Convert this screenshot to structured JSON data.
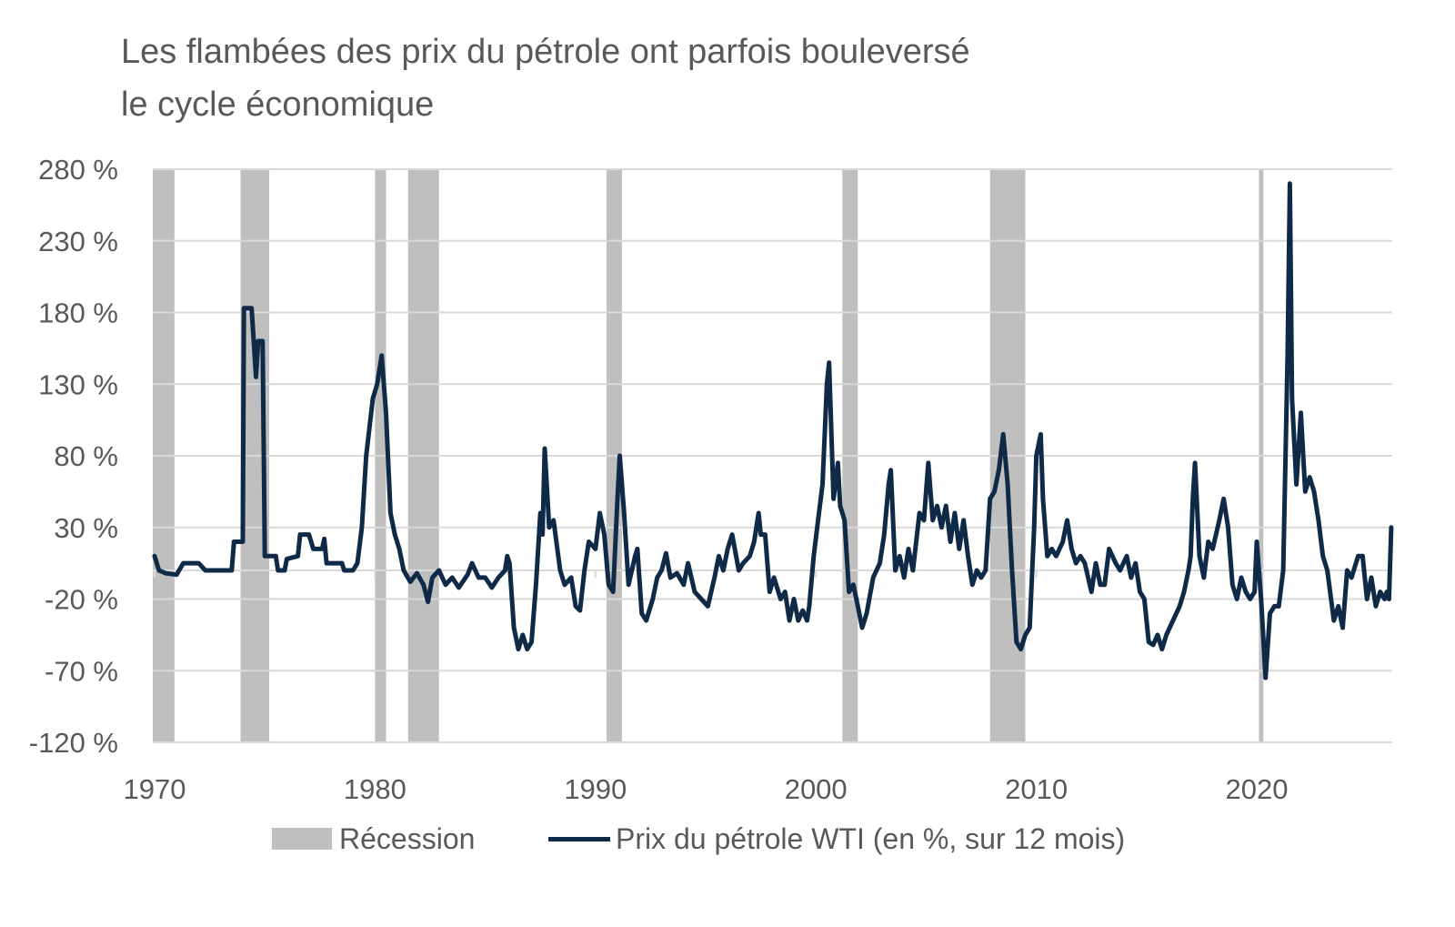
{
  "title_lines": [
    "Les flambées des prix du pétrole ont parfois bouleversé",
    "le cycle économique"
  ],
  "chart_data": {
    "type": "line",
    "title": "Les flambées des prix du pétrole ont parfois bouleversé le cycle économique",
    "xlabel": "",
    "ylabel": "",
    "xlim": [
      1970,
      2026.1
    ],
    "ylim": [
      -120,
      280
    ],
    "y_ticks": [
      280,
      230,
      180,
      130,
      80,
      30,
      -20,
      -70,
      -120
    ],
    "y_tick_labels": [
      "280 %",
      "230 %",
      "180 %",
      "130 %",
      "80 %",
      "30 %",
      "-20 %",
      "-70 %",
      "-120 %"
    ],
    "x_ticks": [
      1970,
      1980,
      1990,
      2000,
      2010,
      2020
    ],
    "x_tick_labels": [
      "1970",
      "1980",
      "1990",
      "2000",
      "2010",
      "2020"
    ],
    "grid": true,
    "legend_position": "bottom",
    "colors": {
      "line": "#0f2a47",
      "recession": "#bfbfbf",
      "grid": "#d9d9d9"
    },
    "recessions": [
      {
        "name": "Récession",
        "start": 1969.9,
        "end": 1970.9
      },
      {
        "name": "Récession",
        "start": 1973.9,
        "end": 1975.2
      },
      {
        "name": "Récession",
        "start": 1980.0,
        "end": 1980.5
      },
      {
        "name": "Récession",
        "start": 1981.5,
        "end": 1982.9
      },
      {
        "name": "Récession",
        "start": 1990.5,
        "end": 1991.2
      },
      {
        "name": "Récession",
        "start": 2001.2,
        "end": 2001.9
      },
      {
        "name": "Récession",
        "start": 2007.9,
        "end": 2009.5
      },
      {
        "name": "Récession",
        "start": 2020.1,
        "end": 2020.3
      }
    ],
    "series": [
      {
        "name": "Prix du pétrole WTI (en %, sur 12 mois)",
        "points": [
          [
            1970.0,
            10
          ],
          [
            1970.2,
            0
          ],
          [
            1970.5,
            -2
          ],
          [
            1971.0,
            -3
          ],
          [
            1971.3,
            5
          ],
          [
            1972.0,
            5
          ],
          [
            1972.3,
            0
          ],
          [
            1973.5,
            0
          ],
          [
            1973.6,
            20
          ],
          [
            1974.0,
            20
          ],
          [
            1974.05,
            183
          ],
          [
            1974.4,
            183
          ],
          [
            1974.6,
            135
          ],
          [
            1974.7,
            160
          ],
          [
            1974.9,
            160
          ],
          [
            1975.0,
            10
          ],
          [
            1975.5,
            10
          ],
          [
            1975.6,
            0
          ],
          [
            1975.9,
            0
          ],
          [
            1976.0,
            8
          ],
          [
            1976.5,
            10
          ],
          [
            1976.6,
            25
          ],
          [
            1977.0,
            25
          ],
          [
            1977.2,
            15
          ],
          [
            1977.6,
            15
          ],
          [
            1977.7,
            22
          ],
          [
            1977.8,
            5
          ],
          [
            1978.5,
            5
          ],
          [
            1978.6,
            0
          ],
          [
            1979.0,
            0
          ],
          [
            1979.2,
            5
          ],
          [
            1979.4,
            30
          ],
          [
            1979.6,
            80
          ],
          [
            1979.9,
            120
          ],
          [
            1980.1,
            130
          ],
          [
            1980.3,
            150
          ],
          [
            1980.5,
            110
          ],
          [
            1980.7,
            40
          ],
          [
            1980.9,
            25
          ],
          [
            1981.1,
            15
          ],
          [
            1981.3,
            0
          ],
          [
            1981.6,
            -8
          ],
          [
            1981.9,
            -2
          ],
          [
            1982.2,
            -10
          ],
          [
            1982.4,
            -22
          ],
          [
            1982.6,
            -5
          ],
          [
            1982.9,
            0
          ],
          [
            1983.2,
            -10
          ],
          [
            1983.5,
            -5
          ],
          [
            1983.8,
            -12
          ],
          [
            1984.2,
            -3
          ],
          [
            1984.4,
            5
          ],
          [
            1984.7,
            -5
          ],
          [
            1985.0,
            -5
          ],
          [
            1985.3,
            -12
          ],
          [
            1985.6,
            -5
          ],
          [
            1985.9,
            0
          ],
          [
            1986.0,
            10
          ],
          [
            1986.1,
            5
          ],
          [
            1986.3,
            -40
          ],
          [
            1986.5,
            -55
          ],
          [
            1986.7,
            -45
          ],
          [
            1986.9,
            -55
          ],
          [
            1987.1,
            -50
          ],
          [
            1987.3,
            -10
          ],
          [
            1987.5,
            40
          ],
          [
            1987.6,
            25
          ],
          [
            1987.7,
            85
          ],
          [
            1987.9,
            30
          ],
          [
            1988.1,
            35
          ],
          [
            1988.4,
            0
          ],
          [
            1988.6,
            -10
          ],
          [
            1988.9,
            -5
          ],
          [
            1989.1,
            -25
          ],
          [
            1989.3,
            -28
          ],
          [
            1989.5,
            0
          ],
          [
            1989.7,
            20
          ],
          [
            1990.0,
            15
          ],
          [
            1990.2,
            40
          ],
          [
            1990.4,
            25
          ],
          [
            1990.6,
            -10
          ],
          [
            1990.8,
            -15
          ],
          [
            1991.0,
            50
          ],
          [
            1991.1,
            80
          ],
          [
            1991.3,
            40
          ],
          [
            1991.5,
            -10
          ],
          [
            1991.8,
            10
          ],
          [
            1991.9,
            15
          ],
          [
            1992.1,
            -30
          ],
          [
            1992.3,
            -35
          ],
          [
            1992.6,
            -20
          ],
          [
            1992.8,
            -5
          ],
          [
            1993.0,
            0
          ],
          [
            1993.2,
            12
          ],
          [
            1993.4,
            -5
          ],
          [
            1993.7,
            -2
          ],
          [
            1994.0,
            -10
          ],
          [
            1994.2,
            5
          ],
          [
            1994.5,
            -15
          ],
          [
            1994.8,
            -20
          ],
          [
            1995.1,
            -25
          ],
          [
            1995.4,
            -5
          ],
          [
            1995.6,
            10
          ],
          [
            1995.8,
            0
          ],
          [
            1996.0,
            15
          ],
          [
            1996.2,
            25
          ],
          [
            1996.5,
            0
          ],
          [
            1996.7,
            5
          ],
          [
            1997.0,
            10
          ],
          [
            1997.2,
            20
          ],
          [
            1997.4,
            40
          ],
          [
            1997.5,
            25
          ],
          [
            1997.7,
            25
          ],
          [
            1997.9,
            -15
          ],
          [
            1998.1,
            -5
          ],
          [
            1998.4,
            -20
          ],
          [
            1998.6,
            -15
          ],
          [
            1998.8,
            -35
          ],
          [
            1999.0,
            -20
          ],
          [
            1999.2,
            -35
          ],
          [
            1999.4,
            -28
          ],
          [
            1999.6,
            -35
          ],
          [
            1999.7,
            -25
          ],
          [
            1999.9,
            10
          ],
          [
            2000.1,
            35
          ],
          [
            2000.3,
            60
          ],
          [
            2000.5,
            130
          ],
          [
            2000.6,
            145
          ],
          [
            2000.8,
            50
          ],
          [
            2001.0,
            75
          ],
          [
            2001.1,
            45
          ],
          [
            2001.3,
            35
          ],
          [
            2001.5,
            -15
          ],
          [
            2001.7,
            -10
          ],
          [
            2001.9,
            -25
          ],
          [
            2002.1,
            -40
          ],
          [
            2002.3,
            -30
          ],
          [
            2002.6,
            -5
          ],
          [
            2002.9,
            5
          ],
          [
            2003.1,
            25
          ],
          [
            2003.3,
            60
          ],
          [
            2003.4,
            70
          ],
          [
            2003.6,
            0
          ],
          [
            2003.8,
            10
          ],
          [
            2004.0,
            -5
          ],
          [
            2004.2,
            15
          ],
          [
            2004.4,
            0
          ],
          [
            2004.7,
            40
          ],
          [
            2004.9,
            35
          ],
          [
            2005.1,
            75
          ],
          [
            2005.3,
            35
          ],
          [
            2005.5,
            45
          ],
          [
            2005.7,
            30
          ],
          [
            2005.9,
            45
          ],
          [
            2006.1,
            20
          ],
          [
            2006.3,
            40
          ],
          [
            2006.5,
            15
          ],
          [
            2006.7,
            35
          ],
          [
            2006.9,
            10
          ],
          [
            2007.1,
            -10
          ],
          [
            2007.3,
            0
          ],
          [
            2007.5,
            -5
          ],
          [
            2007.7,
            0
          ],
          [
            2007.9,
            50
          ],
          [
            2008.1,
            55
          ],
          [
            2008.3,
            70
          ],
          [
            2008.5,
            95
          ],
          [
            2008.7,
            60
          ],
          [
            2008.9,
            0
          ],
          [
            2009.1,
            -50
          ],
          [
            2009.3,
            -55
          ],
          [
            2009.5,
            -45
          ],
          [
            2009.7,
            -40
          ],
          [
            2009.9,
            30
          ],
          [
            2010.0,
            80
          ],
          [
            2010.2,
            95
          ],
          [
            2010.3,
            50
          ],
          [
            2010.5,
            10
          ],
          [
            2010.7,
            15
          ],
          [
            2010.9,
            10
          ],
          [
            2011.2,
            20
          ],
          [
            2011.4,
            35
          ],
          [
            2011.6,
            15
          ],
          [
            2011.8,
            5
          ],
          [
            2012.0,
            10
          ],
          [
            2012.2,
            5
          ],
          [
            2012.5,
            -15
          ],
          [
            2012.7,
            5
          ],
          [
            2012.9,
            -10
          ],
          [
            2013.1,
            -10
          ],
          [
            2013.3,
            15
          ],
          [
            2013.6,
            5
          ],
          [
            2013.8,
            0
          ],
          [
            2014.1,
            10
          ],
          [
            2014.3,
            -5
          ],
          [
            2014.5,
            5
          ],
          [
            2014.7,
            -15
          ],
          [
            2014.9,
            -20
          ],
          [
            2015.1,
            -50
          ],
          [
            2015.3,
            -52
          ],
          [
            2015.5,
            -45
          ],
          [
            2015.7,
            -55
          ],
          [
            2015.9,
            -45
          ],
          [
            2016.2,
            -35
          ],
          [
            2016.5,
            -25
          ],
          [
            2016.7,
            -15
          ],
          [
            2016.9,
            0
          ],
          [
            2017.0,
            10
          ],
          [
            2017.1,
            50
          ],
          [
            2017.2,
            75
          ],
          [
            2017.4,
            10
          ],
          [
            2017.6,
            -5
          ],
          [
            2017.8,
            20
          ],
          [
            2018.0,
            15
          ],
          [
            2018.3,
            35
          ],
          [
            2018.5,
            50
          ],
          [
            2018.7,
            30
          ],
          [
            2018.9,
            -10
          ],
          [
            2019.1,
            -20
          ],
          [
            2019.3,
            -5
          ],
          [
            2019.5,
            -15
          ],
          [
            2019.7,
            -20
          ],
          [
            2019.9,
            -15
          ],
          [
            2020.0,
            20
          ],
          [
            2020.2,
            -20
          ],
          [
            2020.4,
            -75
          ],
          [
            2020.6,
            -30
          ],
          [
            2020.8,
            -25
          ],
          [
            2021.0,
            -25
          ],
          [
            2021.2,
            0
          ],
          [
            2021.4,
            150
          ],
          [
            2021.5,
            270
          ],
          [
            2021.6,
            120
          ],
          [
            2021.8,
            60
          ],
          [
            2022.0,
            110
          ],
          [
            2022.2,
            55
          ],
          [
            2022.4,
            65
          ],
          [
            2022.6,
            55
          ],
          [
            2022.8,
            35
          ],
          [
            2023.0,
            10
          ],
          [
            2023.2,
            0
          ],
          [
            2023.5,
            -35
          ],
          [
            2023.7,
            -25
          ],
          [
            2023.9,
            -40
          ],
          [
            2024.1,
            0
          ],
          [
            2024.3,
            -5
          ],
          [
            2024.6,
            10
          ],
          [
            2024.8,
            10
          ],
          [
            2025.0,
            -20
          ],
          [
            2025.2,
            -5
          ],
          [
            2025.4,
            -25
          ],
          [
            2025.6,
            -15
          ],
          [
            2025.8,
            -20
          ],
          [
            2025.9,
            -15
          ],
          [
            2026.0,
            -20
          ],
          [
            2026.1,
            30
          ]
        ]
      }
    ]
  },
  "legend": {
    "recession_label": "Récession",
    "line_label": "Prix du pétrole WTI (en %, sur 12 mois)"
  }
}
